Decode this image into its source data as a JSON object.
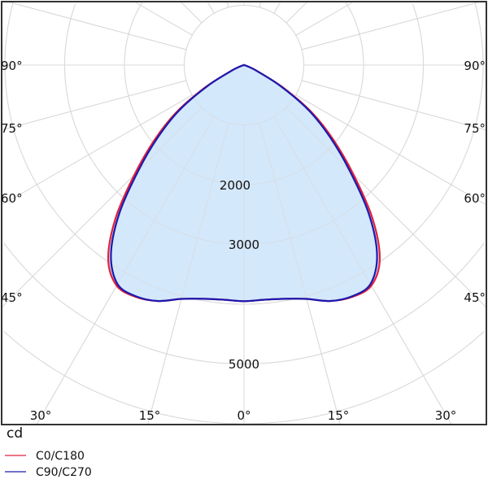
{
  "chart_data": {
    "type": "polar",
    "unit_label": "cd",
    "radial_ticks": [
      1000,
      2000,
      3000,
      4000,
      5000,
      6000
    ],
    "radial_tick_labels": [
      "2000",
      "3000",
      "5000"
    ],
    "angle_ticks": [
      0,
      15,
      30,
      45,
      60,
      75,
      90
    ],
    "angle_tick_labels_bottom": [
      "30°",
      "15°",
      "0°",
      "15°",
      "30°"
    ],
    "angle_tick_labels_side": [
      "90°",
      "75°",
      "60°",
      "45°"
    ],
    "grid": true,
    "legend_placement": "bottom-left",
    "fill_color": "#d4e8fb",
    "gamma": [
      0,
      5,
      10,
      15,
      20,
      25,
      30,
      35,
      40,
      45,
      50,
      55,
      60,
      65,
      70,
      75,
      80,
      85,
      90
    ],
    "series": [
      {
        "name": "C0/C180",
        "color": "#e0203a",
        "values": [
          3950,
          3940,
          3970,
          4050,
          4200,
          4280,
          4260,
          3960,
          3340,
          2590,
          1960,
          1390,
          760,
          270,
          90,
          20,
          0,
          0,
          0
        ]
      },
      {
        "name": "C90/C270",
        "color": "#1a1ab0",
        "values": [
          3950,
          3940,
          3970,
          4050,
          4200,
          4270,
          4230,
          3880,
          3250,
          2500,
          1880,
          1330,
          720,
          250,
          80,
          20,
          0,
          0,
          0
        ]
      }
    ]
  }
}
